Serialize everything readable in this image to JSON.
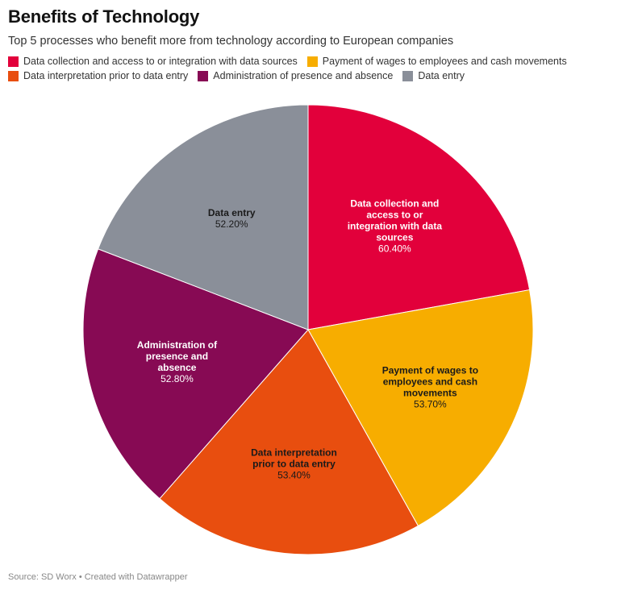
{
  "title": "Benefits of Technology",
  "subtitle": "Top 5 processes who benefit more from technology according to European companies",
  "footer": "Source: SD Worx • Created with Datawrapper",
  "chart_data": {
    "type": "pie",
    "title": "Benefits of Technology",
    "subtitle": "Top 5 processes who benefit more from technology according to European companies",
    "legend_position": "top",
    "slices": [
      {
        "label": "Data collection and access to or integration with data sources",
        "label_lines": [
          "Data collection and",
          "access to or",
          "integration with data",
          "sources"
        ],
        "value": 60.4,
        "value_label": "60.40%",
        "color": "#e2003b",
        "text_color": "#ffffff"
      },
      {
        "label": "Payment of wages to employees and cash movements",
        "label_lines": [
          "Payment of wages to",
          "employees and cash",
          "movements"
        ],
        "value": 53.7,
        "value_label": "53.70%",
        "color": "#f7ad00",
        "text_color": "#1a1a1a"
      },
      {
        "label": "Data interpretation prior to data entry",
        "label_lines": [
          "Data interpretation",
          "prior to data entry"
        ],
        "value": 53.4,
        "value_label": "53.40%",
        "color": "#e84e0f",
        "text_color": "#1a1a1a"
      },
      {
        "label": "Administration of presence and absence",
        "label_lines": [
          "Administration of",
          "presence and",
          "absence"
        ],
        "value": 52.8,
        "value_label": "52.80%",
        "color": "#870a54",
        "text_color": "#ffffff"
      },
      {
        "label": "Data entry",
        "label_lines": [
          "Data entry"
        ],
        "value": 52.2,
        "value_label": "52.20%",
        "color": "#8a8f99",
        "text_color": "#1a1a1a"
      }
    ]
  }
}
